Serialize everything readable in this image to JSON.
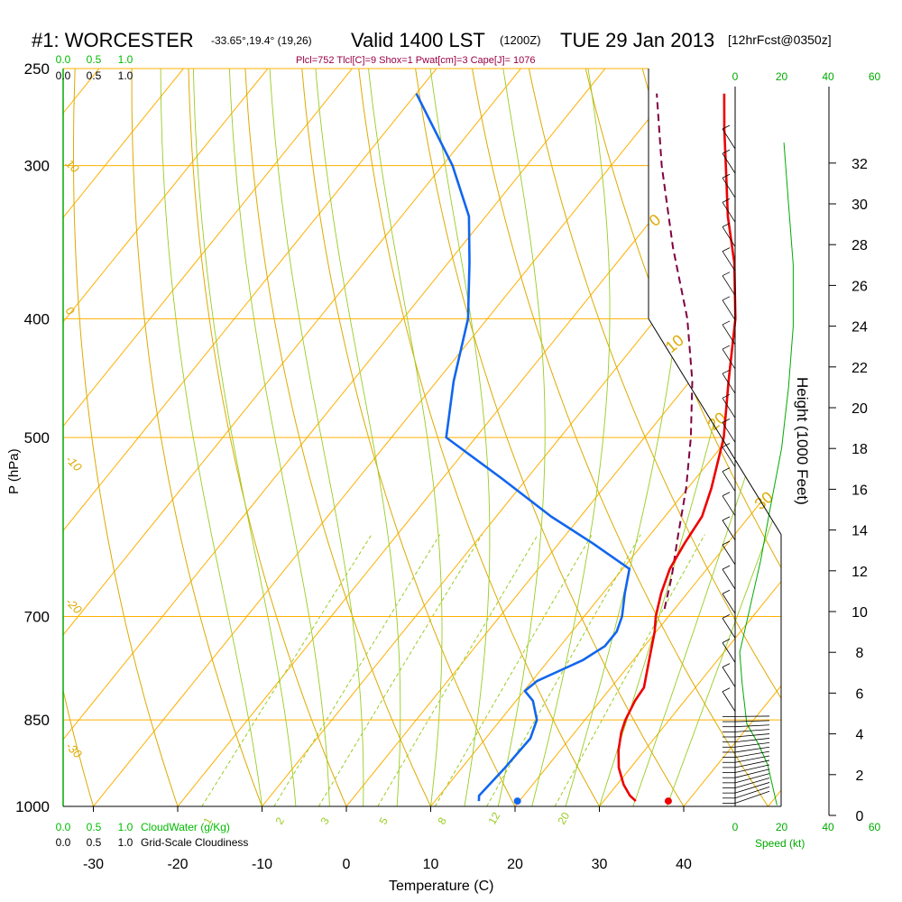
{
  "header": {
    "title": "#1: WORCESTER",
    "location": "-33.65°,19.4° (19,26)",
    "valid": "Valid 1400 LST",
    "utc": "(1200Z)",
    "date": "TUE 29 Jan 2013",
    "forecast": "[12hrFcst@0350z]",
    "params": "Plcl=752 Tlcl[C]=9 Shox=1 Pwat[cm]=3 Cape[J]= 1076"
  },
  "left_scales": {
    "cloudwater_ticks": [
      "0.0",
      "0.5",
      "1.0"
    ],
    "cloudiness_ticks": [
      "0.0",
      "0.5",
      "1.0"
    ],
    "cloudwater_label": "CloudWater (g/Kg)",
    "cloudiness_label": "Grid-Scale Cloudiness"
  },
  "right_panel": {
    "speed_ticks": [
      "0",
      "20",
      "40",
      "60"
    ],
    "speed_label": "Speed (kt)",
    "height_label": "Height (1000 Feet)",
    "height_ticks": [
      "0",
      "2",
      "4",
      "6",
      "8",
      "10",
      "12",
      "14",
      "16",
      "18",
      "20",
      "22",
      "24",
      "26",
      "28",
      "30",
      "32"
    ]
  },
  "colors": {
    "temperature": "#ee0000",
    "dewpoint": "#1166ee",
    "parcel": "#800040",
    "isotherm": "#ffb000",
    "dry_adiabat": "#ddaa00",
    "moist_adiabat": "#99cc22",
    "mixing_ratio": "#99cc22",
    "speed": "#00aa00",
    "params": "#990044",
    "scale_green": "#00bb00"
  },
  "chart_data": {
    "type": "skew-t",
    "xlabel": "Temperature (C)",
    "ylabel": "P (hPa)",
    "x_ticks": [
      "-30",
      "-20",
      "-10",
      "0",
      "10",
      "20",
      "30",
      "40"
    ],
    "y_ticks": [
      "250",
      "300",
      "400",
      "500",
      "700",
      "850",
      "1000"
    ],
    "temperature_profile": [
      {
        "p": 990,
        "t": 33.8
      },
      {
        "p": 980,
        "t": 32.6
      },
      {
        "p": 960,
        "t": 30.8
      },
      {
        "p": 930,
        "t": 28.6
      },
      {
        "p": 900,
        "t": 26.9
      },
      {
        "p": 870,
        "t": 25.5
      },
      {
        "p": 850,
        "t": 24.8
      },
      {
        "p": 820,
        "t": 24.1
      },
      {
        "p": 800,
        "t": 23.9
      },
      {
        "p": 760,
        "t": 21.9
      },
      {
        "p": 720,
        "t": 19.8
      },
      {
        "p": 700,
        "t": 18.5
      },
      {
        "p": 670,
        "t": 16.9
      },
      {
        "p": 640,
        "t": 15.6
      },
      {
        "p": 610,
        "t": 14.9
      },
      {
        "p": 580,
        "t": 14.4
      },
      {
        "p": 550,
        "t": 12.8
      },
      {
        "p": 500,
        "t": 9.4
      },
      {
        "p": 450,
        "t": 4.6
      },
      {
        "p": 400,
        "t": -0.6
      },
      {
        "p": 360,
        "t": -6.1
      },
      {
        "p": 330,
        "t": -11.3
      },
      {
        "p": 300,
        "t": -16.4
      },
      {
        "p": 280,
        "t": -20.1
      },
      {
        "p": 262,
        "t": -23.5
      }
    ],
    "dewpoint_profile": [
      {
        "p": 990,
        "t": 15.2
      },
      {
        "p": 980,
        "t": 14.7
      },
      {
        "p": 930,
        "t": 15.1
      },
      {
        "p": 880,
        "t": 15.3
      },
      {
        "p": 850,
        "t": 14.3
      },
      {
        "p": 820,
        "t": 12.0
      },
      {
        "p": 805,
        "t": 10.1
      },
      {
        "p": 790,
        "t": 10.6
      },
      {
        "p": 760,
        "t": 14.0
      },
      {
        "p": 740,
        "t": 15.3
      },
      {
        "p": 720,
        "t": 15.3
      },
      {
        "p": 700,
        "t": 14.5
      },
      {
        "p": 670,
        "t": 12.6
      },
      {
        "p": 640,
        "t": 10.8
      },
      {
        "p": 610,
        "t": 4.0
      },
      {
        "p": 580,
        "t": -3.5
      },
      {
        "p": 540,
        "t": -13.0
      },
      {
        "p": 500,
        "t": -23.5
      },
      {
        "p": 450,
        "t": -28.0
      },
      {
        "p": 400,
        "t": -32.3
      },
      {
        "p": 360,
        "t": -37.5
      },
      {
        "p": 330,
        "t": -42.0
      },
      {
        "p": 300,
        "t": -48.8
      },
      {
        "p": 262,
        "t": -60.0
      }
    ],
    "parcel_profile": [
      {
        "p": 690,
        "t": 18.8
      },
      {
        "p": 650,
        "t": 16.6
      },
      {
        "p": 600,
        "t": 13.3
      },
      {
        "p": 550,
        "t": 9.8
      },
      {
        "p": 500,
        "t": 5.5
      },
      {
        "p": 450,
        "t": 0.3
      },
      {
        "p": 400,
        "t": -6.3
      },
      {
        "p": 350,
        "t": -14.8
      },
      {
        "p": 300,
        "t": -24.0
      },
      {
        "p": 262,
        "t": -31.5
      }
    ],
    "surface_temperature": 35.5,
    "surface_dewpoint": 19.0,
    "dry_adiabat_labels": [
      {
        "theta": "10",
        "t": 10
      },
      {
        "theta": "0",
        "t": 0
      },
      {
        "theta": "-10",
        "t": -10
      },
      {
        "theta": "-20",
        "t": -20
      },
      {
        "theta": "-30",
        "t": -30
      }
    ],
    "moist_adiabat_labels": [
      "0",
      "10",
      "20",
      "30"
    ],
    "mixing_ratio_labels": [
      "1",
      "2",
      "3",
      "5",
      "8",
      "12",
      "20"
    ],
    "speed_profile": [
      {
        "h": 0.5,
        "v": 18
      },
      {
        "h": 1.5,
        "v": 16
      },
      {
        "h": 2.5,
        "v": 14
      },
      {
        "h": 3.5,
        "v": 10
      },
      {
        "h": 4.5,
        "v": 5
      },
      {
        "h": 5.5,
        "v": 4
      },
      {
        "h": 6.5,
        "v": 3
      },
      {
        "h": 8.0,
        "v": 2
      },
      {
        "h": 9.0,
        "v": 4
      },
      {
        "h": 10.5,
        "v": 7
      },
      {
        "h": 12.5,
        "v": 11
      },
      {
        "h": 15.0,
        "v": 15
      },
      {
        "h": 18.0,
        "v": 20
      },
      {
        "h": 21.0,
        "v": 23
      },
      {
        "h": 24.0,
        "v": 25
      },
      {
        "h": 27.0,
        "v": 25
      },
      {
        "h": 30.0,
        "v": 23
      },
      {
        "h": 33.0,
        "v": 21
      }
    ]
  }
}
